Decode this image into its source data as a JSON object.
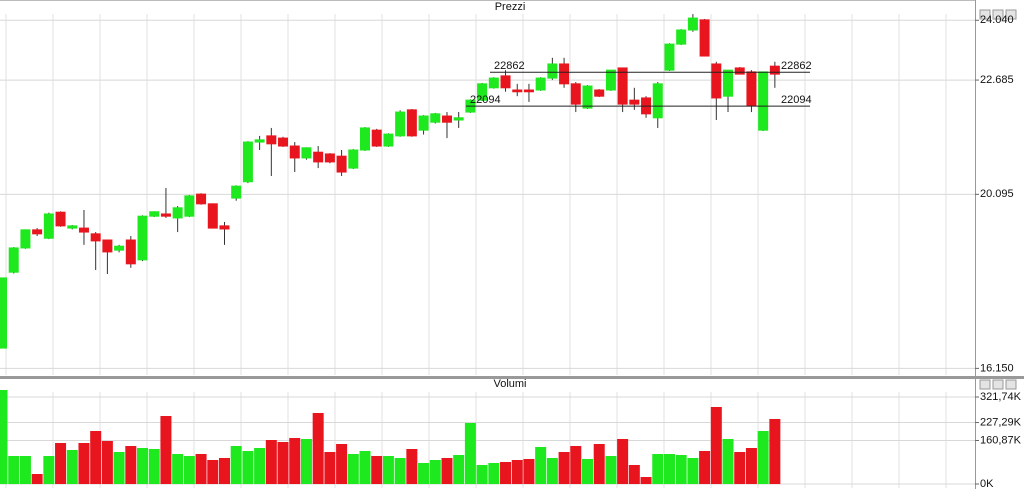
{
  "chart_data": [
    {
      "type": "candlestick",
      "title": "Prezzi",
      "open": [
        16610,
        18330,
        18880,
        19290,
        19100,
        19690,
        19330,
        19330,
        19200,
        19060,
        18830,
        19060,
        18610,
        19600,
        19650,
        19560,
        19600,
        20100,
        19880,
        19380,
        20010,
        20380,
        21280,
        21420,
        21370,
        21190,
        20920,
        21050,
        21010,
        20960,
        20690,
        21100,
        21550,
        21190,
        21420,
        22010,
        21550,
        21730,
        21870,
        21780,
        21960,
        22230,
        22510,
        22780,
        22460,
        22460,
        22460,
        22730,
        23050,
        22600,
        22050,
        22460,
        22460,
        22960,
        22230,
        22280,
        21830,
        22910,
        23500,
        23820,
        24050,
        23050,
        22320,
        22960,
        22870,
        21550,
        23000
      ],
      "high": [
        18200,
        18900,
        19300,
        19330,
        19680,
        19710,
        19400,
        19740,
        19240,
        19060,
        18950,
        19150,
        19620,
        19710,
        20240,
        19830,
        20080,
        20120,
        19890,
        19470,
        20300,
        21300,
        21420,
        21600,
        21400,
        21280,
        21160,
        21190,
        21030,
        21100,
        21120,
        21620,
        21580,
        21480,
        22000,
        22030,
        21890,
        21940,
        21960,
        21960,
        22250,
        22620,
        22750,
        22910,
        22600,
        22600,
        22750,
        23190,
        23190,
        22640,
        22570,
        22480,
        22910,
        22960,
        22510,
        22320,
        22640,
        23520,
        23840,
        24180,
        24070,
        23100,
        22910,
        22980,
        22910,
        22870,
        23100
      ],
      "low": [
        16610,
        18300,
        18860,
        19150,
        19080,
        19360,
        19300,
        18950,
        18380,
        18290,
        18780,
        18430,
        18580,
        19580,
        19560,
        19240,
        19580,
        19860,
        19320,
        18950,
        19950,
        20350,
        21100,
        20510,
        21170,
        20600,
        20880,
        20690,
        20800,
        20510,
        20670,
        21080,
        21170,
        21170,
        21400,
        21400,
        21450,
        21700,
        21370,
        21600,
        21940,
        22210,
        22490,
        22420,
        22320,
        22190,
        22440,
        22690,
        22510,
        21960,
        22030,
        22300,
        22440,
        21960,
        22010,
        21830,
        21600,
        22890,
        23480,
        23780,
        23230,
        21780,
        21960,
        22820,
        21960,
        21530,
        22510
      ],
      "close": [
        18200,
        18880,
        19290,
        19200,
        19650,
        19380,
        19380,
        19240,
        19040,
        18790,
        18920,
        18520,
        19600,
        19700,
        19600,
        19790,
        20060,
        19880,
        19330,
        19310,
        20280,
        21280,
        21330,
        21240,
        21190,
        20920,
        21150,
        20830,
        20830,
        20600,
        21100,
        21600,
        21190,
        21460,
        21960,
        21420,
        21870,
        21920,
        21730,
        21830,
        22230,
        22600,
        22730,
        22510,
        22420,
        22420,
        22730,
        23050,
        22600,
        22140,
        22550,
        22320,
        22910,
        22140,
        22140,
        21920,
        22600,
        23500,
        23820,
        24090,
        23230,
        22280,
        22910,
        22820,
        22100,
        22870,
        22820
      ],
      "up_color": "#1ee81e",
      "down_color": "#e8141e",
      "hlines": [
        22862,
        22094
      ],
      "ylim": [
        16000,
        24500
      ],
      "yticks": [
        {
          "value": 24040,
          "label": "24.040"
        },
        {
          "value": 22685,
          "label": "22.685"
        },
        {
          "value": 20095,
          "label": "20.095"
        },
        {
          "value": 16150,
          "label": "16.150"
        }
      ],
      "grid": true
    },
    {
      "type": "bar",
      "title": "Volumi",
      "values": [
        347600,
        103600,
        103600,
        37000,
        103600,
        151600,
        125700,
        151600,
        196000,
        159000,
        118300,
        140500,
        133100,
        129400,
        251500,
        110900,
        103600,
        110900,
        88800,
        96200,
        140500,
        122000,
        133100,
        162700,
        155300,
        170100,
        166400,
        262600,
        118300,
        147900,
        110900,
        122000,
        103600,
        103600,
        96200,
        129400,
        77700,
        88800,
        96200,
        107200,
        225600,
        70300,
        77700,
        81400,
        88800,
        92500,
        136800,
        96200,
        118300,
        140500,
        92500,
        147900,
        103600,
        166400,
        70300,
        25900,
        110900,
        110900,
        107200,
        96200,
        122000,
        284800,
        166400,
        118300,
        133100,
        196000,
        240400
      ],
      "ylim": [
        0,
        355000
      ],
      "yticks": [
        {
          "value": 321740,
          "label": "321,74K"
        },
        {
          "value": 227290,
          "label": "227,29K"
        },
        {
          "value": 160870,
          "label": "160,87K"
        },
        {
          "value": 0,
          "label": "0K"
        }
      ],
      "grid": true
    }
  ]
}
